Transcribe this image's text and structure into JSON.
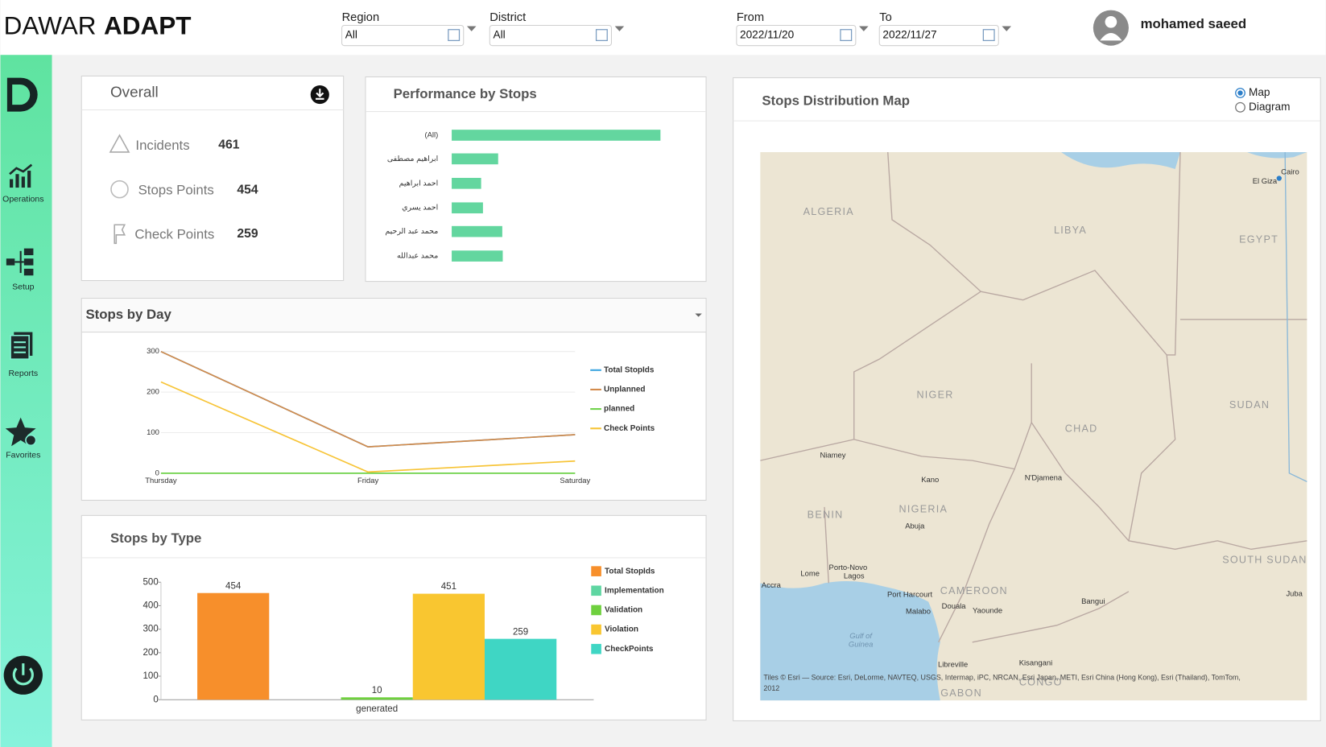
{
  "header": {
    "brand": [
      "DAWAR",
      "ADAPT"
    ],
    "filters": [
      {
        "label": "Region",
        "value": "All"
      },
      {
        "label": "District",
        "value": "All"
      },
      {
        "label": "From",
        "value": "2022/11/20"
      },
      {
        "label": "To",
        "value": "2022/11/27"
      }
    ],
    "user": "mohamed saeed"
  },
  "sidebar": [
    "Operations",
    "Setup",
    "Reports",
    "Favorites"
  ],
  "overall": {
    "title": "Overall",
    "items": [
      {
        "label": "Incidents",
        "value": 461
      },
      {
        "label": "Stops Points",
        "value": 454
      },
      {
        "label": "Check Points",
        "value": 259
      }
    ]
  },
  "map": {
    "title": "Stops Distribution Map",
    "options": [
      "Map",
      "Diagram"
    ],
    "selected": "Map",
    "labels": [
      "ALGERIA",
      "LIBYA",
      "EGYPT",
      "NIGER",
      "CHAD",
      "SUDAN",
      "NIGERIA",
      "BENIN",
      "CAMEROON",
      "SOUTH SUDAN",
      "GABON",
      "CONGO",
      "Cairo",
      "El Giza",
      "Niamey",
      "Kano",
      "N'Djamena",
      "Abuja",
      "Porto-Novo",
      "Lagos",
      "Lome",
      "Accra",
      "Port Harcourt",
      "Malabo",
      "Douala",
      "Yaounde",
      "Bangui",
      "Juba",
      "Libreville",
      "Kisangani",
      "Gulf of",
      "Guinea"
    ],
    "attribution": "Tiles © Esri — Source: Esri, DeLorme, NAVTEQ, USGS, Intermap, iPC, NRCAN, Esri Japan, METI, Esri China (Hong Kong), Esri (Thailand), TomTom,",
    "attribution_year": "2012"
  },
  "chart_data": [
    {
      "type": "bar",
      "orientation": "horizontal",
      "title": "Performance by Stops",
      "categories": [
        "(All)",
        "ابراهيم مصطفى",
        "احمد ابراهيم",
        "احمد يسري",
        "محمد عبد الرحيم",
        "محمد عبدالله"
      ],
      "values": [
        454,
        101,
        64,
        68,
        110,
        111
      ],
      "color": "#63d69f"
    },
    {
      "type": "line",
      "title": "Stops by Day",
      "categories": [
        "Thursday",
        "Friday",
        "Saturday"
      ],
      "ylim": [
        0,
        300
      ],
      "yticks": [
        0,
        100,
        200,
        300
      ],
      "grid": true,
      "series": [
        {
          "name": "Total StopIds",
          "color": "#3ea6e0",
          "values": [
            300,
            65,
            95
          ]
        },
        {
          "name": "Unplanned",
          "color": "#d38b4c",
          "values": [
            300,
            65,
            95
          ]
        },
        {
          "name": "planned",
          "color": "#6fd24a",
          "values": [
            0,
            0,
            0
          ]
        },
        {
          "name": "Check Points",
          "color": "#f7c437",
          "values": [
            225,
            3,
            30
          ]
        }
      ]
    },
    {
      "type": "bar",
      "orientation": "vertical",
      "title": "Stops by Type",
      "categories": [
        "generated"
      ],
      "ylim": [
        0,
        500
      ],
      "yticks": [
        0,
        100,
        200,
        300,
        400,
        500
      ],
      "grid": false,
      "series": [
        {
          "name": "Total StopIds",
          "color": "#f78f2b",
          "values": [
            454
          ]
        },
        {
          "name": "Implementation",
          "color": "#5fd6a2",
          "values": [
            0
          ]
        },
        {
          "name": "Validation",
          "color": "#6fd03e",
          "values": [
            10
          ]
        },
        {
          "name": "Violation",
          "color": "#f9c630",
          "values": [
            451
          ]
        },
        {
          "name": "CheckPoints",
          "color": "#3fd6c4",
          "values": [
            259
          ]
        }
      ]
    }
  ]
}
